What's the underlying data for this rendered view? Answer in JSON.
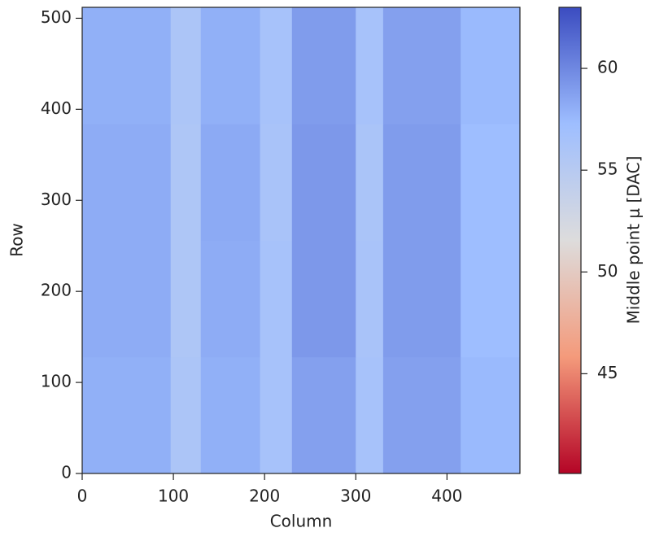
{
  "chart_data": {
    "type": "heatmap",
    "xlabel": "Column",
    "ylabel": "Row",
    "xbins": [
      0,
      97,
      130,
      195,
      230,
      300,
      330,
      415,
      480
    ],
    "ybins": [
      0,
      128,
      256,
      384,
      512
    ],
    "values": [
      [
        58.0,
        56.0,
        58.0,
        56.5,
        58.8,
        56.5,
        58.8,
        57.5
      ],
      [
        58.2,
        55.8,
        58.2,
        56.5,
        59.2,
        56.3,
        59.0,
        57.3
      ],
      [
        58.2,
        55.8,
        58.3,
        56.3,
        59.2,
        56.2,
        59.0,
        57.3
      ],
      [
        58.0,
        56.0,
        58.0,
        56.5,
        59.0,
        56.5,
        58.8,
        57.5
      ]
    ],
    "xlim": [
      0,
      480
    ],
    "xticks": [
      0,
      100,
      200,
      300,
      400
    ],
    "ylim": [
      0,
      512
    ],
    "yticks": [
      0,
      100,
      200,
      300,
      400,
      500
    ],
    "colormap": [
      "#b40426",
      "#f49a7b",
      "#dddcdc",
      "#9ebeff",
      "#3b4cc0"
    ],
    "clim": [
      40.1,
      63
    ],
    "cbar_ticks": [
      45,
      50,
      55,
      60
    ],
    "cbar_label": "Middle point μ [DAC]"
  }
}
